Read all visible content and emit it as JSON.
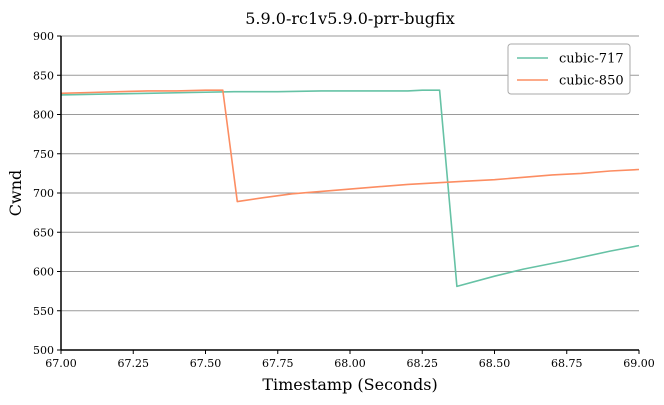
{
  "chart_data": {
    "type": "line",
    "title": "5.9.0-rc1v5.9.0-prr-bugfix",
    "xlabel": "Timestamp (Seconds)",
    "ylabel": "Cwnd",
    "xlim": [
      67.0,
      69.0
    ],
    "ylim": [
      500,
      900
    ],
    "xticks": [
      67.0,
      67.25,
      67.5,
      67.75,
      68.0,
      68.25,
      68.5,
      68.75,
      69.0
    ],
    "xtick_labels": [
      "67.00",
      "67.25",
      "67.50",
      "67.75",
      "68.00",
      "68.25",
      "68.50",
      "68.75",
      "69.00"
    ],
    "yticks": [
      500,
      550,
      600,
      650,
      700,
      750,
      800,
      850,
      900
    ],
    "ytick_labels": [
      "500",
      "550",
      "600",
      "650",
      "700",
      "750",
      "800",
      "850",
      "900"
    ],
    "grid": "horizontal",
    "legend_position": "top-right",
    "series": [
      {
        "name": "cubic-717",
        "color": "#66c2a5",
        "points": [
          [
            67.0,
            825
          ],
          [
            67.15,
            826
          ],
          [
            67.3,
            827
          ],
          [
            67.45,
            828
          ],
          [
            67.6,
            829
          ],
          [
            67.75,
            829
          ],
          [
            67.9,
            830
          ],
          [
            68.05,
            830
          ],
          [
            68.2,
            830
          ],
          [
            68.25,
            831
          ],
          [
            68.31,
            831
          ],
          [
            68.37,
            581
          ],
          [
            68.5,
            594
          ],
          [
            68.6,
            603
          ],
          [
            68.75,
            614
          ],
          [
            68.9,
            626
          ],
          [
            69.0,
            633
          ]
        ]
      },
      {
        "name": "cubic-850",
        "color": "#fc8d62",
        "points": [
          [
            67.0,
            827
          ],
          [
            67.1,
            828
          ],
          [
            67.2,
            829
          ],
          [
            67.3,
            830
          ],
          [
            67.4,
            830
          ],
          [
            67.5,
            831
          ],
          [
            67.56,
            831
          ],
          [
            67.61,
            689
          ],
          [
            67.7,
            694
          ],
          [
            67.8,
            699
          ],
          [
            67.9,
            702
          ],
          [
            68.0,
            705
          ],
          [
            68.1,
            708
          ],
          [
            68.2,
            711
          ],
          [
            68.3,
            713
          ],
          [
            68.4,
            715
          ],
          [
            68.5,
            717
          ],
          [
            68.6,
            720
          ],
          [
            68.7,
            723
          ],
          [
            68.8,
            725
          ],
          [
            68.9,
            728
          ],
          [
            69.0,
            730
          ]
        ]
      }
    ]
  }
}
